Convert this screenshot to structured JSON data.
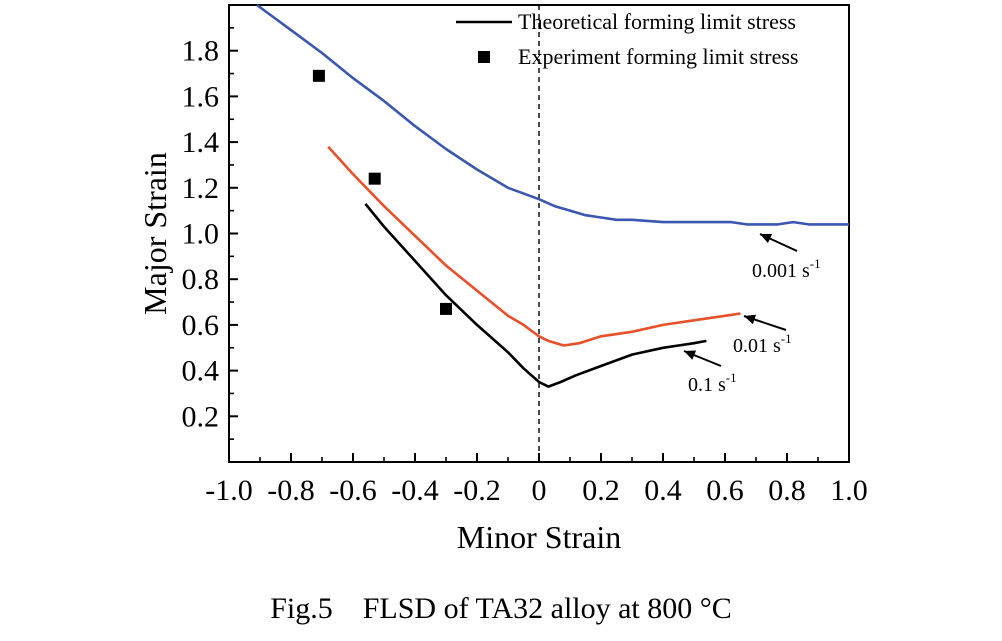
{
  "caption": "Fig.5    FLSD of TA32 alloy at 800 °C",
  "chart_data": {
    "type": "line",
    "xlabel": "Minor Strain",
    "ylabel": "Major Strain",
    "xlim": [
      -1.0,
      1.0
    ],
    "ylim": [
      0.0,
      2.0
    ],
    "x_ticks": [
      -1.0,
      -0.8,
      -0.6,
      -0.4,
      -0.2,
      0,
      0.2,
      0.4,
      0.6,
      0.8,
      1.0
    ],
    "x_tick_labels": [
      "-1.0",
      "-0.8",
      "-0.6",
      "-0.4",
      "-0.2",
      "0",
      "0.2",
      "0.4",
      "0.6",
      "0.8",
      "1.0"
    ],
    "y_ticks": [
      0.2,
      0.4,
      0.6,
      0.8,
      1.0,
      1.2,
      1.4,
      1.6,
      1.8
    ],
    "y_tick_labels": [
      "0.2",
      "0.4",
      "0.6",
      "0.8",
      "1.0",
      "1.2",
      "1.4",
      "1.6",
      "1.8"
    ],
    "grid": false,
    "legend_position": "top-right",
    "legend": [
      {
        "label": "Theoretical forming limit stress",
        "marker": "line"
      },
      {
        "label": "Experiment forming limit stress",
        "marker": "square"
      }
    ],
    "reference_line": {
      "x": 0,
      "style": "dashed"
    },
    "series": [
      {
        "color": "#3a56b0",
        "x": [
          -0.91,
          -0.8,
          -0.7,
          -0.6,
          -0.5,
          -0.4,
          -0.3,
          -0.2,
          -0.1,
          0.0,
          0.05,
          0.1,
          0.15,
          0.2,
          0.25,
          0.3,
          0.4,
          0.45,
          0.55,
          0.62,
          0.67,
          0.72,
          0.77,
          0.82,
          0.87,
          0.92,
          1.0
        ],
        "y": [
          2.0,
          1.89,
          1.79,
          1.68,
          1.58,
          1.47,
          1.37,
          1.28,
          1.2,
          1.15,
          1.12,
          1.1,
          1.08,
          1.07,
          1.06,
          1.06,
          1.05,
          1.05,
          1.05,
          1.05,
          1.04,
          1.04,
          1.04,
          1.05,
          1.04,
          1.04,
          1.04
        ],
        "annotation": {
          "text": "0.001 s",
          "sup": "-1",
          "x": 0.72,
          "y": 1.03
        }
      },
      {
        "color": "#e8502a",
        "x": [
          -0.68,
          -0.6,
          -0.5,
          -0.4,
          -0.3,
          -0.2,
          -0.1,
          -0.05,
          0.0,
          0.03,
          0.08,
          0.13,
          0.2,
          0.3,
          0.4,
          0.5,
          0.6,
          0.65
        ],
        "y": [
          1.38,
          1.26,
          1.12,
          0.99,
          0.86,
          0.75,
          0.64,
          0.6,
          0.55,
          0.53,
          0.51,
          0.52,
          0.55,
          0.57,
          0.6,
          0.62,
          0.64,
          0.65
        ],
        "annotation": {
          "text": "0.01 s",
          "sup": "-1",
          "x": 0.6,
          "y": 0.63
        }
      },
      {
        "color": "#000000",
        "x": [
          -0.56,
          -0.5,
          -0.4,
          -0.3,
          -0.2,
          -0.1,
          -0.05,
          0.0,
          0.03,
          0.07,
          0.12,
          0.2,
          0.3,
          0.4,
          0.45,
          0.5,
          0.54
        ],
        "y": [
          1.13,
          1.03,
          0.88,
          0.73,
          0.6,
          0.48,
          0.41,
          0.35,
          0.33,
          0.35,
          0.38,
          0.42,
          0.47,
          0.5,
          0.51,
          0.52,
          0.53
        ],
        "annotation": {
          "text": "0.1 s",
          "sup": "-1",
          "x": 0.45,
          "y": 0.5
        }
      }
    ],
    "scatter": {
      "x": [
        -0.71,
        -0.53,
        -0.3
      ],
      "y": [
        1.69,
        1.24,
        0.67
      ]
    }
  }
}
